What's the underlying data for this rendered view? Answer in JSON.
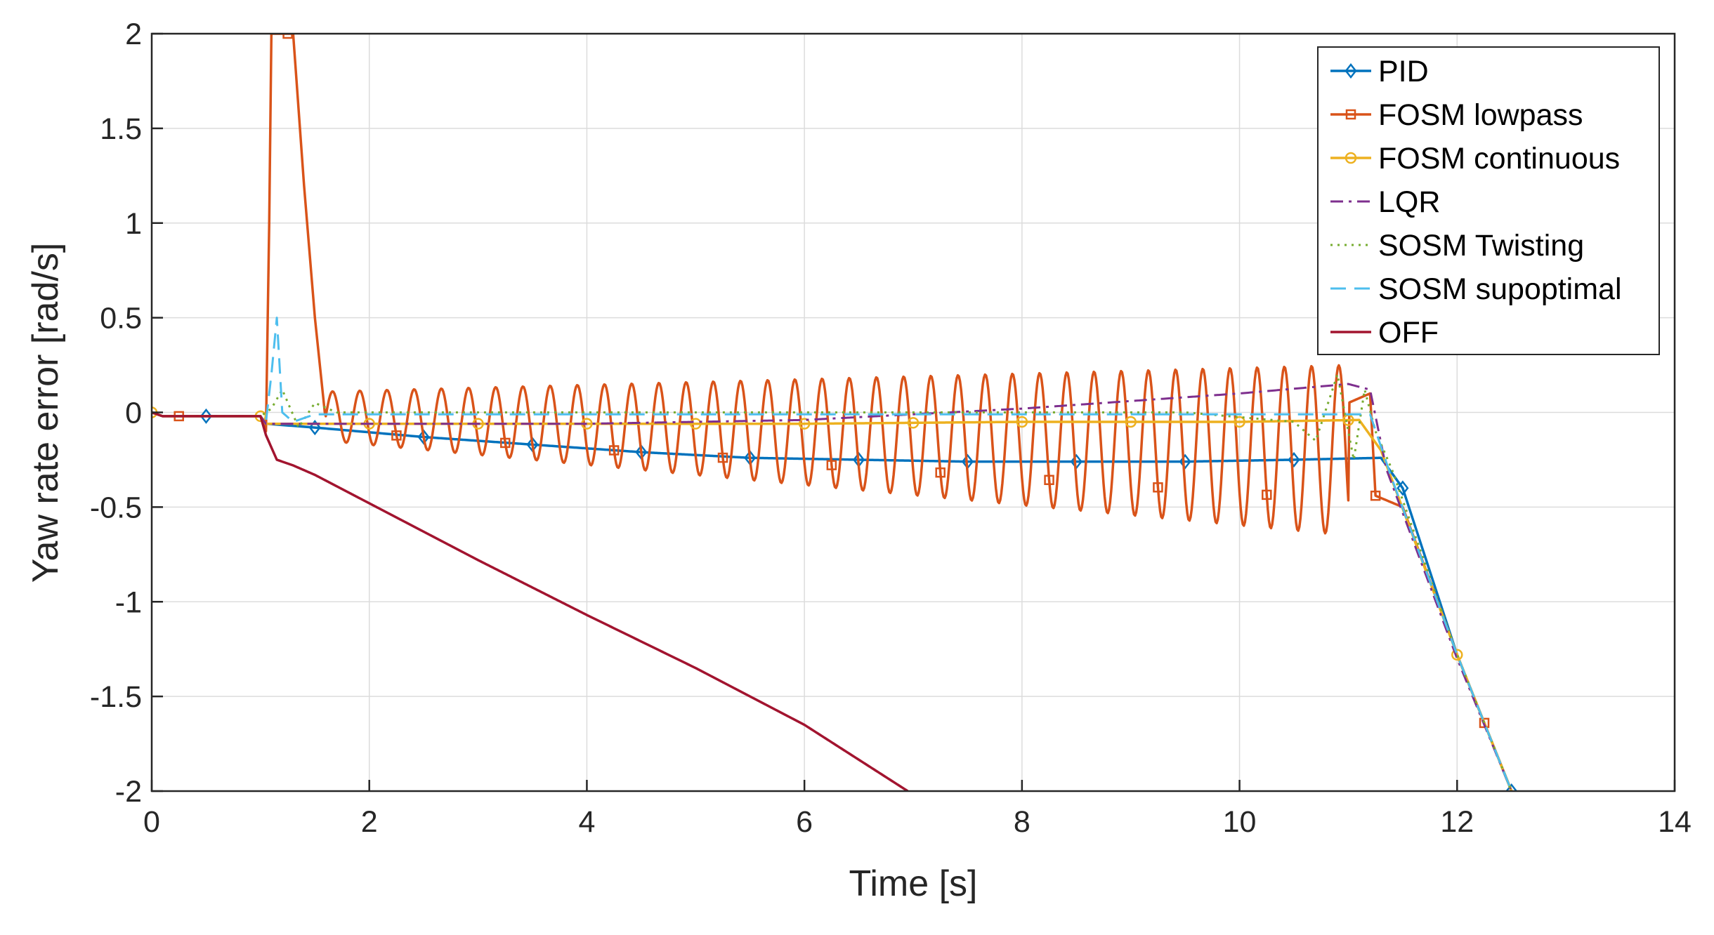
{
  "chart_data": {
    "type": "line",
    "title": "",
    "xlabel": "Time [s]",
    "ylabel": "Yaw rate error [rad/s]",
    "xlim": [
      0,
      14
    ],
    "ylim": [
      -2,
      2
    ],
    "xticks": [
      0,
      2,
      4,
      6,
      8,
      10,
      12,
      14
    ],
    "yticks": [
      -2,
      -1.5,
      -1,
      -0.5,
      0,
      0.5,
      1,
      1.5,
      2
    ],
    "xtick_labels": [
      "0",
      "2",
      "4",
      "6",
      "8",
      "10",
      "12",
      "14"
    ],
    "ytick_labels": [
      "-2",
      "-1.5",
      "-1",
      "-0.5",
      "0",
      "0.5",
      "1",
      "1.5",
      "2"
    ],
    "grid": true,
    "legend_position": "top-right",
    "series": [
      {
        "name": "PID",
        "color": "#0072BD",
        "dash": "solid",
        "marker": "diamond",
        "markers_x": [
          0.5,
          1.5,
          2.5,
          3.5,
          4.5,
          5.5,
          6.5,
          7.5,
          8.5,
          9.5,
          10.5,
          11.5,
          12.5
        ],
        "points": [
          [
            0,
            0
          ],
          [
            0.1,
            -0.02
          ],
          [
            0.5,
            -0.02
          ],
          [
            0.9,
            -0.02
          ],
          [
            1.0,
            -0.02
          ],
          [
            1.05,
            -0.06
          ],
          [
            1.5,
            -0.08
          ],
          [
            2.5,
            -0.13
          ],
          [
            3.5,
            -0.17
          ],
          [
            4.5,
            -0.21
          ],
          [
            5.5,
            -0.24
          ],
          [
            6.5,
            -0.25
          ],
          [
            7.5,
            -0.26
          ],
          [
            8.5,
            -0.26
          ],
          [
            9.5,
            -0.26
          ],
          [
            10.5,
            -0.25
          ],
          [
            11.3,
            -0.24
          ],
          [
            11.5,
            -0.4
          ],
          [
            12.0,
            -1.28
          ],
          [
            12.5,
            -2.0
          ]
        ]
      },
      {
        "name": "FOSM lowpass",
        "color": "#D95319",
        "dash": "solid",
        "marker": "square",
        "markers_x": [
          0.25,
          1.25,
          2.25,
          3.25,
          4.25,
          5.25,
          6.25,
          7.25,
          8.25,
          9.25,
          10.25,
          11.25,
          12.25
        ],
        "points": [
          [
            0,
            0
          ],
          [
            0.1,
            -0.02
          ],
          [
            1.0,
            -0.02
          ],
          [
            1.05,
            -0.1
          ],
          [
            1.08,
            1.0
          ],
          [
            1.1,
            2.0
          ],
          [
            1.3,
            2.0
          ],
          [
            1.4,
            1.2
          ],
          [
            1.5,
            0.5
          ],
          [
            1.6,
            -0.05
          ],
          [
            10.7,
            -0.2
          ],
          [
            11.0,
            0.05
          ],
          [
            11.2,
            0.1
          ],
          [
            11.25,
            -0.44
          ],
          [
            11.5,
            -0.5
          ],
          [
            12.0,
            -1.28
          ],
          [
            12.25,
            -1.64
          ],
          [
            12.5,
            -2.0
          ]
        ],
        "oscillation": {
          "t_start": 1.6,
          "t_end": 11.0,
          "frequency_hz": 4.0,
          "center_start": -0.02,
          "center_end": -0.2,
          "amp_start": 0.13,
          "amp_end": 0.45
        }
      },
      {
        "name": "FOSM continuous",
        "color": "#EDB120",
        "dash": "solid",
        "marker": "circle",
        "markers_x": [
          0,
          1,
          2,
          3,
          4,
          5,
          6,
          7,
          8,
          9,
          10,
          11,
          12
        ],
        "points": [
          [
            0,
            0
          ],
          [
            0.1,
            -0.02
          ],
          [
            1.0,
            -0.02
          ],
          [
            1.05,
            -0.06
          ],
          [
            2,
            -0.06
          ],
          [
            4,
            -0.06
          ],
          [
            6,
            -0.06
          ],
          [
            8,
            -0.05
          ],
          [
            10,
            -0.05
          ],
          [
            11.1,
            -0.04
          ],
          [
            11.3,
            -0.2
          ],
          [
            12.0,
            -1.28
          ],
          [
            12.5,
            -2.0
          ]
        ]
      },
      {
        "name": "LQR",
        "color": "#7E2F8E",
        "dash": "dashdot",
        "marker": "none",
        "markers_x": [],
        "points": [
          [
            0,
            0
          ],
          [
            0.1,
            -0.02
          ],
          [
            1.0,
            -0.02
          ],
          [
            1.05,
            -0.06
          ],
          [
            2,
            -0.06
          ],
          [
            4,
            -0.06
          ],
          [
            6,
            -0.04
          ],
          [
            8,
            0.02
          ],
          [
            10,
            0.1
          ],
          [
            11.0,
            0.15
          ],
          [
            11.2,
            0.12
          ],
          [
            11.35,
            -0.3
          ],
          [
            12.0,
            -1.3
          ],
          [
            12.5,
            -2.0
          ]
        ]
      },
      {
        "name": "SOSM Twisting",
        "color": "#77AC30",
        "dash": "dotted",
        "marker": "none",
        "markers_x": [],
        "points": [
          [
            0,
            0
          ],
          [
            0.1,
            -0.02
          ],
          [
            1.0,
            -0.02
          ],
          [
            1.1,
            0.02
          ],
          [
            1.2,
            0.12
          ],
          [
            1.35,
            -0.08
          ],
          [
            1.5,
            0.05
          ],
          [
            1.7,
            0
          ],
          [
            2,
            0
          ],
          [
            4,
            0
          ],
          [
            8,
            0
          ],
          [
            9.5,
            0
          ],
          [
            10.5,
            -0.05
          ],
          [
            10.7,
            -0.15
          ],
          [
            10.9,
            0.2
          ],
          [
            11.05,
            -0.25
          ],
          [
            11.15,
            0.12
          ],
          [
            11.25,
            -0.1
          ],
          [
            11.4,
            -0.3
          ],
          [
            12.0,
            -1.28
          ],
          [
            12.5,
            -2.0
          ]
        ]
      },
      {
        "name": "SOSM supoptimal",
        "color": "#4DBEEE",
        "dash": "dashed",
        "marker": "none",
        "markers_x": [],
        "points": [
          [
            0,
            0
          ],
          [
            0.1,
            -0.02
          ],
          [
            1.0,
            -0.02
          ],
          [
            1.05,
            -0.05
          ],
          [
            1.1,
            0.2
          ],
          [
            1.15,
            0.5
          ],
          [
            1.2,
            0.0
          ],
          [
            1.3,
            -0.05
          ],
          [
            1.5,
            -0.01
          ],
          [
            2,
            -0.01
          ],
          [
            4,
            -0.01
          ],
          [
            6,
            -0.01
          ],
          [
            8,
            -0.01
          ],
          [
            10,
            -0.01
          ],
          [
            11.2,
            -0.01
          ],
          [
            11.4,
            -0.35
          ],
          [
            12.0,
            -1.28
          ],
          [
            12.5,
            -2.0
          ]
        ]
      },
      {
        "name": "OFF",
        "color": "#A2142F",
        "dash": "solid",
        "marker": "none",
        "markers_x": [],
        "points": [
          [
            0,
            0
          ],
          [
            0.1,
            -0.02
          ],
          [
            1.0,
            -0.02
          ],
          [
            1.05,
            -0.12
          ],
          [
            1.15,
            -0.25
          ],
          [
            1.3,
            -0.28
          ],
          [
            1.5,
            -0.33
          ],
          [
            2.0,
            -0.48
          ],
          [
            3.0,
            -0.78
          ],
          [
            4.0,
            -1.07
          ],
          [
            5.0,
            -1.35
          ],
          [
            6.0,
            -1.65
          ],
          [
            6.95,
            -2.0
          ]
        ]
      }
    ]
  }
}
